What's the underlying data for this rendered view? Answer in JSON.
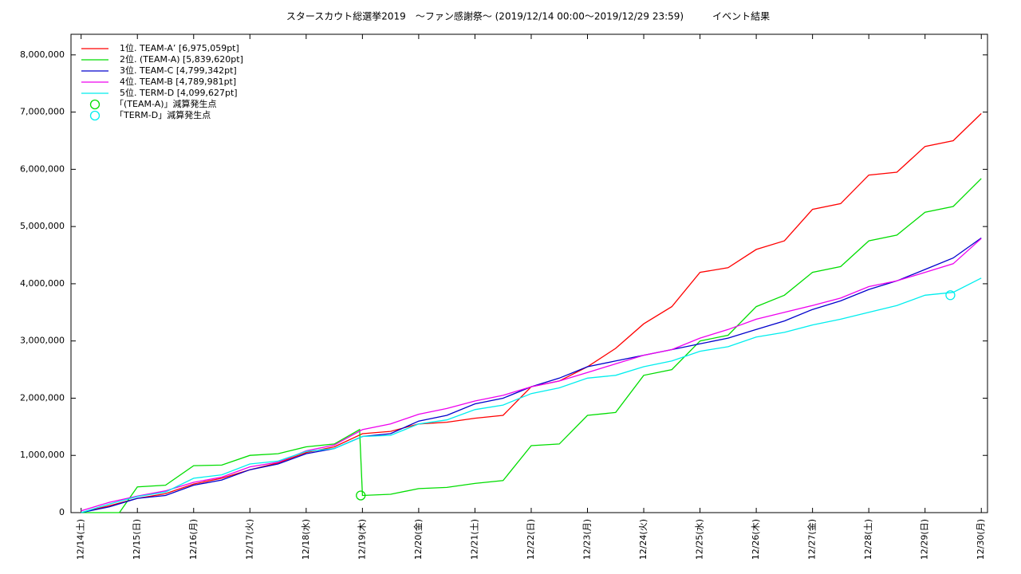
{
  "chart_data": {
    "type": "line",
    "title": "スタースカウト総選挙2019　～ファン感謝祭～ (2019/12/14 00:00～2019/12/29 23:59)　　　イベント結果",
    "xlim": [
      -0.18,
      16.11
    ],
    "ylim": [
      0,
      8360000
    ],
    "xticks": [
      {
        "value": 0,
        "label": "12/14(土)"
      },
      {
        "value": 1,
        "label": "12/15(日)"
      },
      {
        "value": 2,
        "label": "12/16(月)"
      },
      {
        "value": 3,
        "label": "12/17(火)"
      },
      {
        "value": 4,
        "label": "12/18(水)"
      },
      {
        "value": 5,
        "label": "12/19(木)"
      },
      {
        "value": 6,
        "label": "12/20(金)"
      },
      {
        "value": 7,
        "label": "12/21(土)"
      },
      {
        "value": 8,
        "label": "12/22(日)"
      },
      {
        "value": 9,
        "label": "12/23(月)"
      },
      {
        "value": 10,
        "label": "12/24(火)"
      },
      {
        "value": 11,
        "label": "12/25(水)"
      },
      {
        "value": 12,
        "label": "12/26(木)"
      },
      {
        "value": 13,
        "label": "12/27(金)"
      },
      {
        "value": 14,
        "label": "12/28(土)"
      },
      {
        "value": 15,
        "label": "12/29(日)"
      },
      {
        "value": 16,
        "label": "12/30(月)"
      }
    ],
    "yticks": [
      0,
      {
        "value": 1000000,
        "label": "1,000,000"
      },
      {
        "value": 2000000,
        "label": "2,000,000"
      },
      {
        "value": 3000000,
        "label": "3,000,000"
      },
      {
        "value": 4000000,
        "label": "4,000,000"
      },
      {
        "value": 5000000,
        "label": "5,000,000"
      },
      {
        "value": 6000000,
        "label": "6,000,000"
      },
      {
        "value": 7000000,
        "label": "7,000,000"
      },
      {
        "value": 8000000,
        "label": "8,000,000"
      }
    ],
    "series": [
      {
        "name": "1位. TEAM-A’ [6,975,059pt]",
        "color": "#ff0000",
        "x": [
          0,
          0.5,
          1,
          1.5,
          2,
          2.5,
          3,
          3.5,
          4,
          4.5,
          5,
          5.5,
          6,
          6.5,
          7,
          7.5,
          8,
          8.5,
          9,
          9.5,
          10,
          10.5,
          11,
          11.5,
          12,
          12.5,
          13,
          13.5,
          14,
          14.5,
          15,
          15.5,
          16
        ],
        "values": [
          0,
          120000,
          250000,
          330000,
          500000,
          600000,
          750000,
          870000,
          1050000,
          1150000,
          1380000,
          1420000,
          1550000,
          1580000,
          1650000,
          1700000,
          2200000,
          2300000,
          2550000,
          2870000,
          3300000,
          3600000,
          4200000,
          4280000,
          4600000,
          4750000,
          5300000,
          5400000,
          5900000,
          5950000,
          6400000,
          6500000,
          6975059
        ]
      },
      {
        "name": "2位. (TEAM-A) [5,839,620pt]",
        "color": "#00dd00",
        "x": [
          0,
          0.5,
          0.68,
          1,
          1.5,
          2,
          2.5,
          3,
          3.5,
          4,
          4.5,
          4.95,
          5,
          5.5,
          6,
          6.5,
          7,
          7.5,
          8,
          8.5,
          9,
          9.5,
          10,
          10.5,
          11,
          11.5,
          12,
          12.5,
          13,
          13.5,
          14,
          14.5,
          15,
          15.5,
          16
        ],
        "values": [
          0,
          0,
          0,
          450000,
          480000,
          820000,
          830000,
          1000000,
          1030000,
          1150000,
          1200000,
          1450000,
          300000,
          320000,
          420000,
          440000,
          510000,
          560000,
          1170000,
          1200000,
          1700000,
          1750000,
          2400000,
          2500000,
          3000000,
          3100000,
          3600000,
          3800000,
          4200000,
          4300000,
          4750000,
          4850000,
          5250000,
          5350000,
          5839620
        ]
      },
      {
        "name": "3位. TEAM-C [4,799,342pt]",
        "color": "#0000cc",
        "x": [
          0,
          0.5,
          1,
          1.5,
          2,
          2.5,
          3,
          3.5,
          4,
          4.5,
          5,
          5.5,
          6,
          6.5,
          7,
          7.5,
          8,
          8.5,
          9,
          9.5,
          10,
          10.5,
          11,
          11.5,
          12,
          12.5,
          13,
          13.5,
          14,
          14.5,
          15,
          15.5,
          16
        ],
        "values": [
          0,
          100000,
          250000,
          300000,
          480000,
          570000,
          750000,
          850000,
          1030000,
          1120000,
          1330000,
          1380000,
          1600000,
          1700000,
          1900000,
          2000000,
          2200000,
          2350000,
          2550000,
          2650000,
          2750000,
          2850000,
          2950000,
          3050000,
          3200000,
          3350000,
          3550000,
          3700000,
          3900000,
          4050000,
          4250000,
          4450000,
          4799342
        ]
      },
      {
        "name": "4位. TEAM-B [4,789,981pt]",
        "color": "#ee00ee",
        "x": [
          0,
          0.5,
          1,
          1.5,
          2,
          2.5,
          3,
          3.5,
          4,
          4.5,
          5,
          5.5,
          6,
          6.5,
          7,
          7.5,
          8,
          8.5,
          9,
          9.5,
          10,
          10.5,
          11,
          11.5,
          12,
          12.5,
          13,
          13.5,
          14,
          14.5,
          15,
          15.5,
          16
        ],
        "values": [
          30000,
          180000,
          290000,
          380000,
          530000,
          620000,
          800000,
          880000,
          1080000,
          1180000,
          1450000,
          1550000,
          1720000,
          1820000,
          1950000,
          2050000,
          2200000,
          2300000,
          2450000,
          2600000,
          2750000,
          2850000,
          3050000,
          3200000,
          3380000,
          3500000,
          3620000,
          3750000,
          3950000,
          4050000,
          4200000,
          4350000,
          4789981
        ]
      },
      {
        "name": "5位. TERM-D [4,099,627pt]",
        "color": "#00eeee",
        "x": [
          0,
          0.5,
          1,
          1.5,
          2,
          2.5,
          3,
          3.5,
          4,
          4.5,
          5,
          5.5,
          6,
          6.5,
          7,
          7.5,
          8,
          8.5,
          9,
          9.5,
          10,
          10.5,
          11,
          11.5,
          12,
          12.5,
          13,
          13.5,
          14,
          14.5,
          15,
          15.5,
          16
        ],
        "values": [
          0,
          150000,
          280000,
          360000,
          600000,
          660000,
          850000,
          900000,
          1070000,
          1120000,
          1330000,
          1350000,
          1550000,
          1620000,
          1800000,
          1880000,
          2080000,
          2180000,
          2350000,
          2400000,
          2550000,
          2650000,
          2820000,
          2900000,
          3070000,
          3150000,
          3280000,
          3380000,
          3500000,
          3620000,
          3800000,
          3850000,
          4099627
        ]
      }
    ],
    "markers": [
      {
        "name": "「(TEAM-A)」減算発生点",
        "color": "#00dd00",
        "x": 4.97,
        "y": 300000
      },
      {
        "name": "「TERM-D」減算発生点",
        "color": "#00eeee",
        "x": 15.45,
        "y": 3800000
      }
    ]
  }
}
